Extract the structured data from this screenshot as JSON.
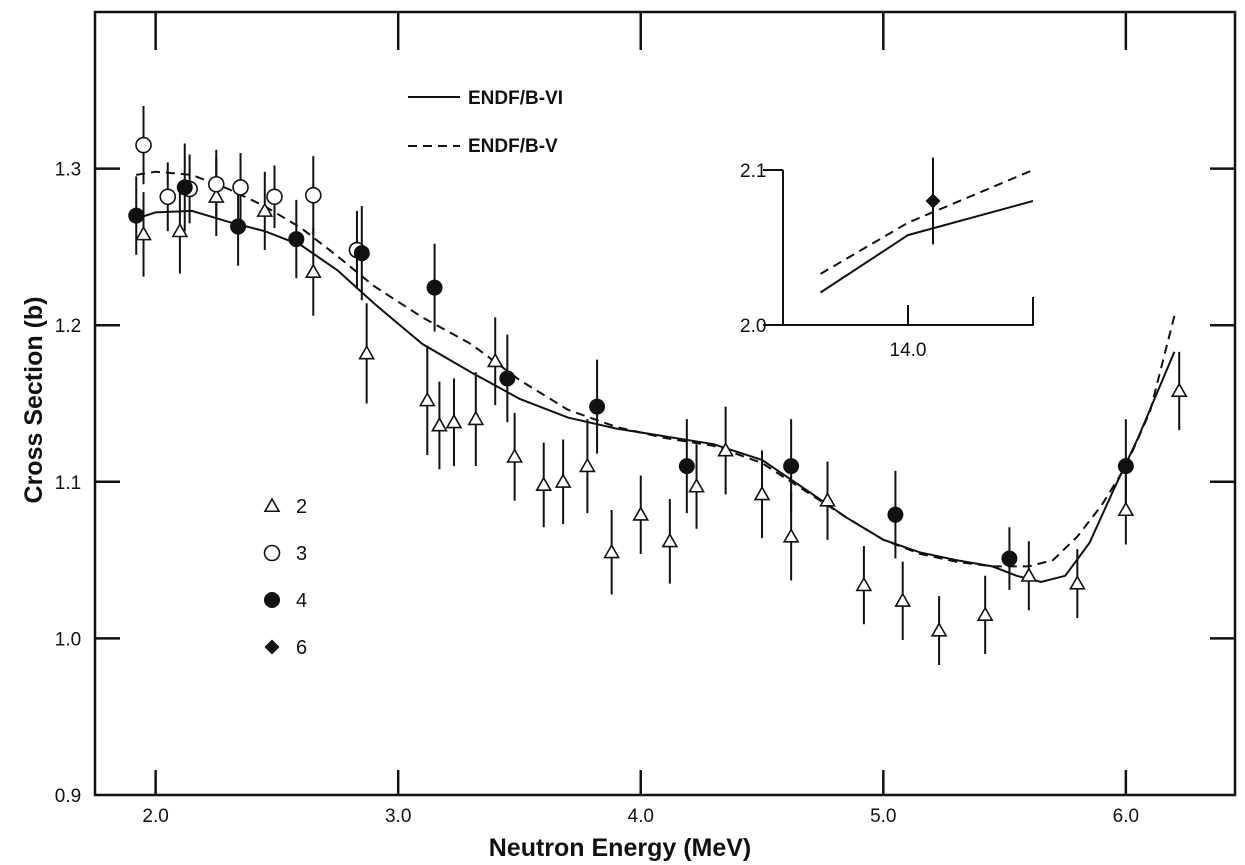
{
  "chart_data": {
    "type": "scatter",
    "xlabel": "Neutron Energy (MeV)",
    "ylabel": "Cross Section (b)",
    "xlim": [
      1.75,
      6.45
    ],
    "ylim": [
      0.9,
      1.4
    ],
    "x_ticks": [
      "2.0",
      "3.0",
      "4.0",
      "5.0",
      "6.0"
    ],
    "y_ticks": [
      "0.9",
      "1.0",
      "1.1",
      "1.2",
      "1.3"
    ],
    "curves": [
      {
        "name": "ENDF/B-VI",
        "style": "solid",
        "points": [
          [
            1.92,
            1.268
          ],
          [
            2.0,
            1.272
          ],
          [
            2.15,
            1.273
          ],
          [
            2.3,
            1.266
          ],
          [
            2.45,
            1.26
          ],
          [
            2.6,
            1.251
          ],
          [
            2.75,
            1.235
          ],
          [
            2.9,
            1.214
          ],
          [
            3.1,
            1.188
          ],
          [
            3.3,
            1.17
          ],
          [
            3.5,
            1.153
          ],
          [
            3.7,
            1.141
          ],
          [
            3.9,
            1.134
          ],
          [
            4.1,
            1.129
          ],
          [
            4.3,
            1.124
          ],
          [
            4.5,
            1.114
          ],
          [
            4.7,
            1.093
          ],
          [
            4.85,
            1.077
          ],
          [
            5.0,
            1.063
          ],
          [
            5.15,
            1.055
          ],
          [
            5.3,
            1.05
          ],
          [
            5.45,
            1.046
          ],
          [
            5.55,
            1.04
          ],
          [
            5.65,
            1.036
          ],
          [
            5.75,
            1.04
          ],
          [
            5.85,
            1.061
          ],
          [
            5.95,
            1.095
          ],
          [
            6.05,
            1.128
          ],
          [
            6.2,
            1.183
          ]
        ]
      },
      {
        "name": "ENDF/B-V",
        "style": "dashed",
        "points": [
          [
            1.92,
            1.296
          ],
          [
            2.0,
            1.298
          ],
          [
            2.15,
            1.296
          ],
          [
            2.3,
            1.287
          ],
          [
            2.45,
            1.276
          ],
          [
            2.6,
            1.262
          ],
          [
            2.75,
            1.244
          ],
          [
            2.9,
            1.225
          ],
          [
            3.1,
            1.205
          ],
          [
            3.3,
            1.188
          ],
          [
            3.5,
            1.165
          ],
          [
            3.7,
            1.146
          ],
          [
            3.9,
            1.135
          ],
          [
            4.1,
            1.128
          ],
          [
            4.3,
            1.123
          ],
          [
            4.5,
            1.112
          ],
          [
            4.7,
            1.092
          ],
          [
            4.85,
            1.077
          ],
          [
            5.0,
            1.063
          ],
          [
            5.15,
            1.054
          ],
          [
            5.3,
            1.049
          ],
          [
            5.45,
            1.046
          ],
          [
            5.6,
            1.046
          ],
          [
            5.7,
            1.05
          ],
          [
            5.8,
            1.065
          ],
          [
            5.9,
            1.085
          ],
          [
            6.0,
            1.11
          ],
          [
            6.1,
            1.145
          ],
          [
            6.2,
            1.206
          ]
        ]
      }
    ],
    "series": [
      {
        "name": "2",
        "marker": "open-triangle",
        "points": [
          {
            "x": 1.95,
            "y": 1.258,
            "err": 0.027
          },
          {
            "x": 2.1,
            "y": 1.26,
            "err": 0.027
          },
          {
            "x": 2.25,
            "y": 1.282,
            "err": 0.025
          },
          {
            "x": 2.45,
            "y": 1.273,
            "err": 0.025
          },
          {
            "x": 2.65,
            "y": 1.234,
            "err": 0.028
          },
          {
            "x": 2.87,
            "y": 1.182,
            "err": 0.032
          },
          {
            "x": 3.12,
            "y": 1.152,
            "err": 0.035
          },
          {
            "x": 3.17,
            "y": 1.136,
            "err": 0.028
          },
          {
            "x": 3.23,
            "y": 1.138,
            "err": 0.028
          },
          {
            "x": 3.32,
            "y": 1.14,
            "err": 0.03
          },
          {
            "x": 3.4,
            "y": 1.177,
            "err": 0.028
          },
          {
            "x": 3.48,
            "y": 1.116,
            "err": 0.028
          },
          {
            "x": 3.6,
            "y": 1.098,
            "err": 0.027
          },
          {
            "x": 3.68,
            "y": 1.1,
            "err": 0.027
          },
          {
            "x": 3.78,
            "y": 1.11,
            "err": 0.03
          },
          {
            "x": 3.88,
            "y": 1.055,
            "err": 0.027
          },
          {
            "x": 4.0,
            "y": 1.079,
            "err": 0.025
          },
          {
            "x": 4.12,
            "y": 1.062,
            "err": 0.027
          },
          {
            "x": 4.23,
            "y": 1.097,
            "err": 0.027
          },
          {
            "x": 4.35,
            "y": 1.12,
            "err": 0.028
          },
          {
            "x": 4.5,
            "y": 1.092,
            "err": 0.028
          },
          {
            "x": 4.62,
            "y": 1.065,
            "err": 0.028
          },
          {
            "x": 4.77,
            "y": 1.088,
            "err": 0.025
          },
          {
            "x": 4.92,
            "y": 1.034,
            "err": 0.025
          },
          {
            "x": 5.08,
            "y": 1.024,
            "err": 0.025
          },
          {
            "x": 5.23,
            "y": 1.005,
            "err": 0.022
          },
          {
            "x": 5.42,
            "y": 1.015,
            "err": 0.025
          },
          {
            "x": 5.6,
            "y": 1.04,
            "err": 0.022
          },
          {
            "x": 5.8,
            "y": 1.035,
            "err": 0.022
          },
          {
            "x": 6.0,
            "y": 1.082,
            "err": 0.022
          },
          {
            "x": 6.22,
            "y": 1.158,
            "err": 0.025
          }
        ]
      },
      {
        "name": "3",
        "marker": "open-circle",
        "points": [
          {
            "x": 1.95,
            "y": 1.315,
            "err": 0.025
          },
          {
            "x": 2.05,
            "y": 1.282,
            "err": 0.022
          },
          {
            "x": 2.14,
            "y": 1.287,
            "err": 0.022
          },
          {
            "x": 2.25,
            "y": 1.29,
            "err": 0.022
          },
          {
            "x": 2.35,
            "y": 1.288,
            "err": 0.022
          },
          {
            "x": 2.49,
            "y": 1.282,
            "err": 0.02
          },
          {
            "x": 2.65,
            "y": 1.283,
            "err": 0.025
          },
          {
            "x": 2.83,
            "y": 1.248,
            "err": 0.025
          }
        ]
      },
      {
        "name": "4",
        "marker": "filled-circle",
        "points": [
          {
            "x": 1.92,
            "y": 1.27,
            "err": 0.025
          },
          {
            "x": 2.12,
            "y": 1.288,
            "err": 0.028
          },
          {
            "x": 2.34,
            "y": 1.263,
            "err": 0.025
          },
          {
            "x": 2.58,
            "y": 1.255,
            "err": 0.025
          },
          {
            "x": 2.85,
            "y": 1.246,
            "err": 0.03
          },
          {
            "x": 3.15,
            "y": 1.224,
            "err": 0.028
          },
          {
            "x": 3.45,
            "y": 1.166,
            "err": 0.028
          },
          {
            "x": 3.82,
            "y": 1.148,
            "err": 0.03
          },
          {
            "x": 4.19,
            "y": 1.11,
            "err": 0.03
          },
          {
            "x": 4.62,
            "y": 1.11,
            "err": 0.03
          },
          {
            "x": 5.05,
            "y": 1.079,
            "err": 0.028
          },
          {
            "x": 5.52,
            "y": 1.051,
            "err": 0.02
          },
          {
            "x": 6.0,
            "y": 1.11,
            "err": 0.03
          }
        ]
      }
    ],
    "legend_items": [
      {
        "marker": "open-triangle",
        "label": "2"
      },
      {
        "marker": "open-circle",
        "label": "3"
      },
      {
        "marker": "filled-circle",
        "label": "4"
      },
      {
        "marker": "filled-diamond",
        "label": "6"
      }
    ],
    "inset": {
      "x_tick": "14.0",
      "y_ticks": [
        "2.0",
        "2.1"
      ],
      "xlim": [
        13.0,
        15.0
      ],
      "ylim": [
        2.0,
        2.1
      ],
      "curves": [
        {
          "name": "ENDF/B-VI",
          "style": "solid",
          "points": [
            [
              13.3,
              2.021
            ],
            [
              14.0,
              2.058
            ],
            [
              15.0,
              2.08
            ]
          ]
        },
        {
          "name": "ENDF/B-V",
          "style": "dashed",
          "points": [
            [
              13.3,
              2.033
            ],
            [
              14.0,
              2.066
            ],
            [
              15.0,
              2.1
            ]
          ]
        }
      ],
      "series": [
        {
          "name": "6",
          "marker": "filled-diamond",
          "points": [
            {
              "x": 14.2,
              "y": 2.08,
              "err": 0.028
            }
          ]
        }
      ]
    }
  }
}
